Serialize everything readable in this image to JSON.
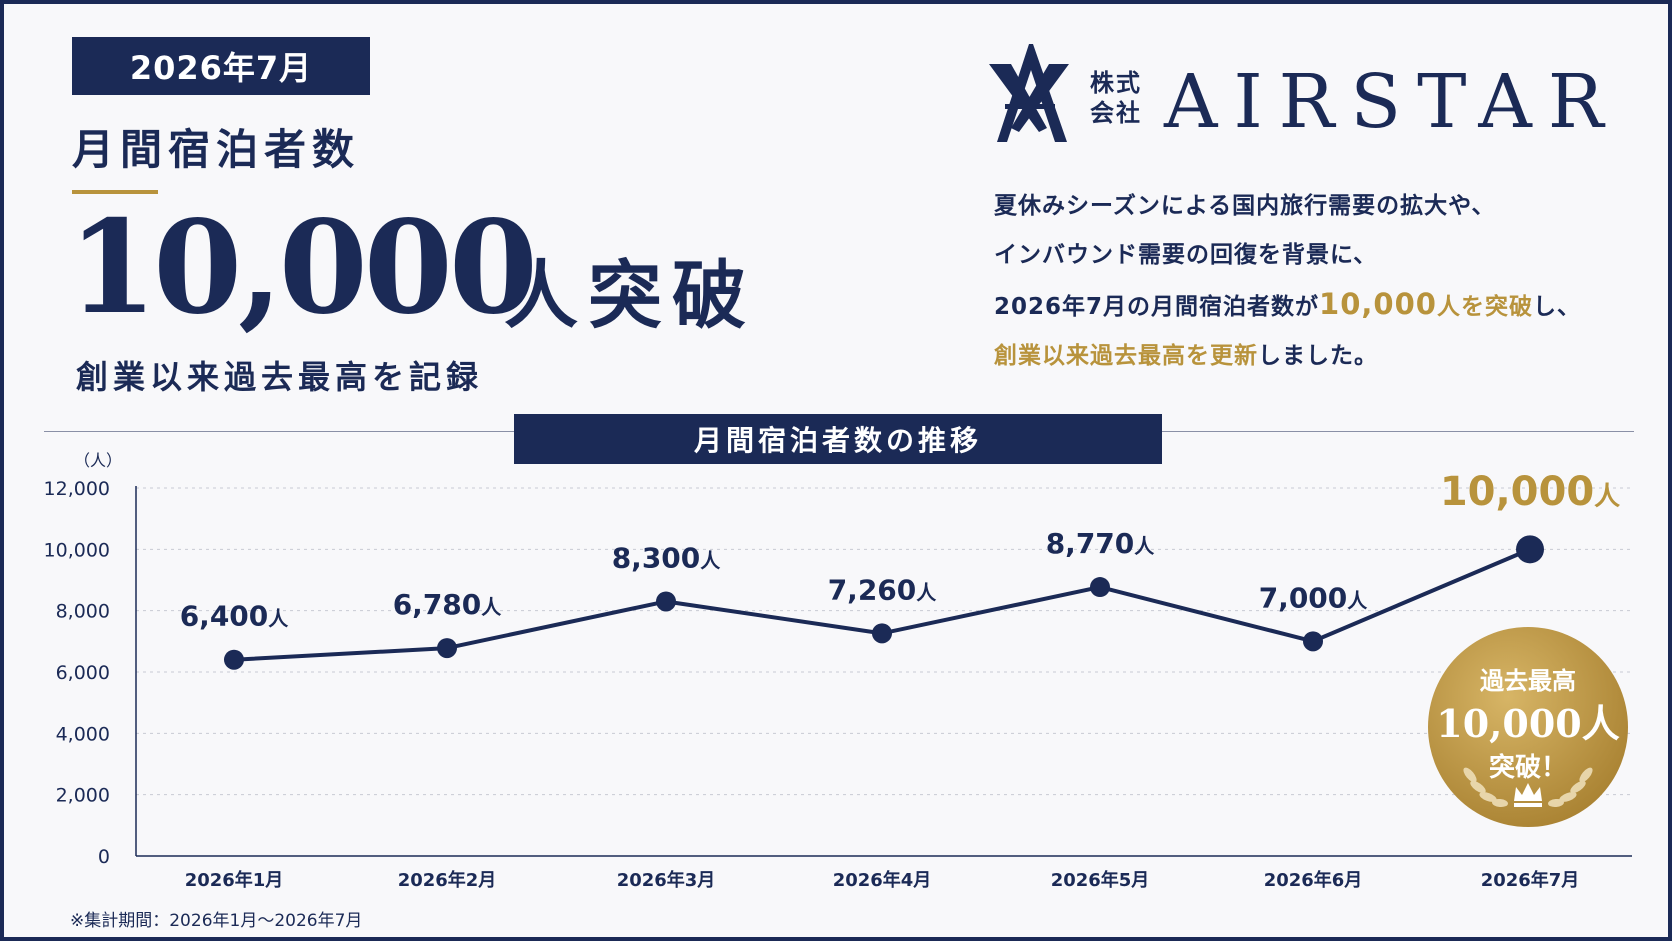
{
  "header": {
    "period_badge": "2026年7月",
    "metric_label": "月間宿泊者数",
    "headline_number": "10,000",
    "headline_suffix": "人突破",
    "subline": "創業以来過去最高を記録"
  },
  "company": {
    "type_line1": "株式",
    "type_line2": "会社",
    "name": "AIRSTAR",
    "logo_icon": "airstar-logo-icon"
  },
  "description": {
    "line1": "夏休みシーズンによる国内旅行需要の拡大や、",
    "line2": "インバウンド需要の回復を背景に、",
    "line3_pre": "2026年7月の月間宿泊者数が",
    "line3_highlight_num": "10,000",
    "line3_highlight_text": "人を突破",
    "line3_post": "し、",
    "line4_highlight": "創業以来過去最高を更新",
    "line4_post": "しました。"
  },
  "section_title": "月間宿泊者数の推移",
  "footnote": "※集計期間：2026年1月〜2026年7月",
  "badge": {
    "line1": "過去最高",
    "line2": "10,000人",
    "line3": "突破！",
    "icon": "crown-icon"
  },
  "colors": {
    "navy": "#1b2a56",
    "gold": "#b8933c",
    "background": "#f8f8fa"
  },
  "chart_data": {
    "type": "line",
    "categories": [
      "2026年1月",
      "2026年2月",
      "2026年3月",
      "2026年4月",
      "2026年5月",
      "2026年6月",
      "2026年7月"
    ],
    "values": [
      6400,
      6780,
      8300,
      7260,
      8770,
      7000,
      10000
    ],
    "data_labels": [
      "6,400",
      "6,780",
      "8,300",
      "7,260",
      "8,770",
      "7,000",
      "10,000"
    ],
    "data_label_unit": "人",
    "y_unit_label": "（人）",
    "ylim": [
      0,
      12000
    ],
    "yticks": [
      0,
      2000,
      4000,
      6000,
      8000,
      10000,
      12000
    ],
    "ytick_labels": [
      "0",
      "2,000",
      "4,000",
      "6,000",
      "8,000",
      "10,000",
      "12,000"
    ],
    "grid": true,
    "highlight_last": true
  }
}
